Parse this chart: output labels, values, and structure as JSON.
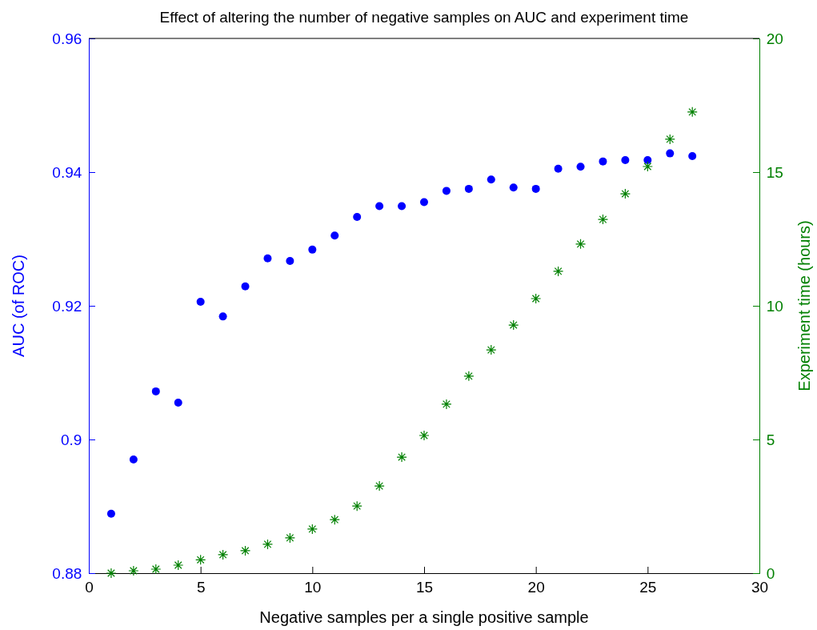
{
  "chart_data": {
    "type": "scatter",
    "title": "Effect of altering the number of negative samples on AUC and experiment time",
    "xlabel": "Negative samples per a single positive sample",
    "ylabel": "AUC (of ROC)",
    "y2label": "Experiment time (hours)",
    "x": [
      1,
      2,
      3,
      4,
      5,
      6,
      7,
      8,
      9,
      10,
      11,
      12,
      13,
      14,
      15,
      16,
      17,
      18,
      19,
      20,
      21,
      22,
      23,
      24,
      25,
      26,
      27
    ],
    "xlim": [
      0,
      30
    ],
    "xticks": [
      0,
      5,
      10,
      15,
      20,
      25,
      30
    ],
    "ylim": [
      0.88,
      0.96
    ],
    "yticks": [
      0.88,
      0.9,
      0.92,
      0.94,
      0.96
    ],
    "y2lim": [
      0,
      20
    ],
    "y2ticks": [
      0,
      5,
      10,
      15,
      20
    ],
    "grid": false,
    "series": [
      {
        "color": "#0000ff",
        "marker": "circle",
        "values": [
          0.8889,
          0.897,
          0.9072,
          0.9055,
          0.9206,
          0.9184,
          0.9229,
          0.9271,
          0.9267,
          0.9284,
          0.9305,
          0.9333,
          0.9349,
          0.9349,
          0.9355,
          0.9372,
          0.9375,
          0.9389,
          0.9377,
          0.9375,
          0.9405,
          0.9408,
          0.9416,
          0.9418,
          0.9418,
          0.9428,
          0.9424
        ]
      },
      {
        "color": "#008000",
        "marker": "cross",
        "axis": "y2",
        "values": [
          0,
          0.09,
          0.15,
          0.3,
          0.5,
          0.69,
          0.84,
          1.08,
          1.32,
          1.65,
          2.0,
          2.51,
          3.26,
          4.34,
          5.15,
          6.32,
          7.37,
          8.35,
          9.28,
          10.27,
          11.29,
          12.31,
          13.23,
          14.19,
          15.21,
          16.23,
          17.25
        ]
      }
    ]
  }
}
